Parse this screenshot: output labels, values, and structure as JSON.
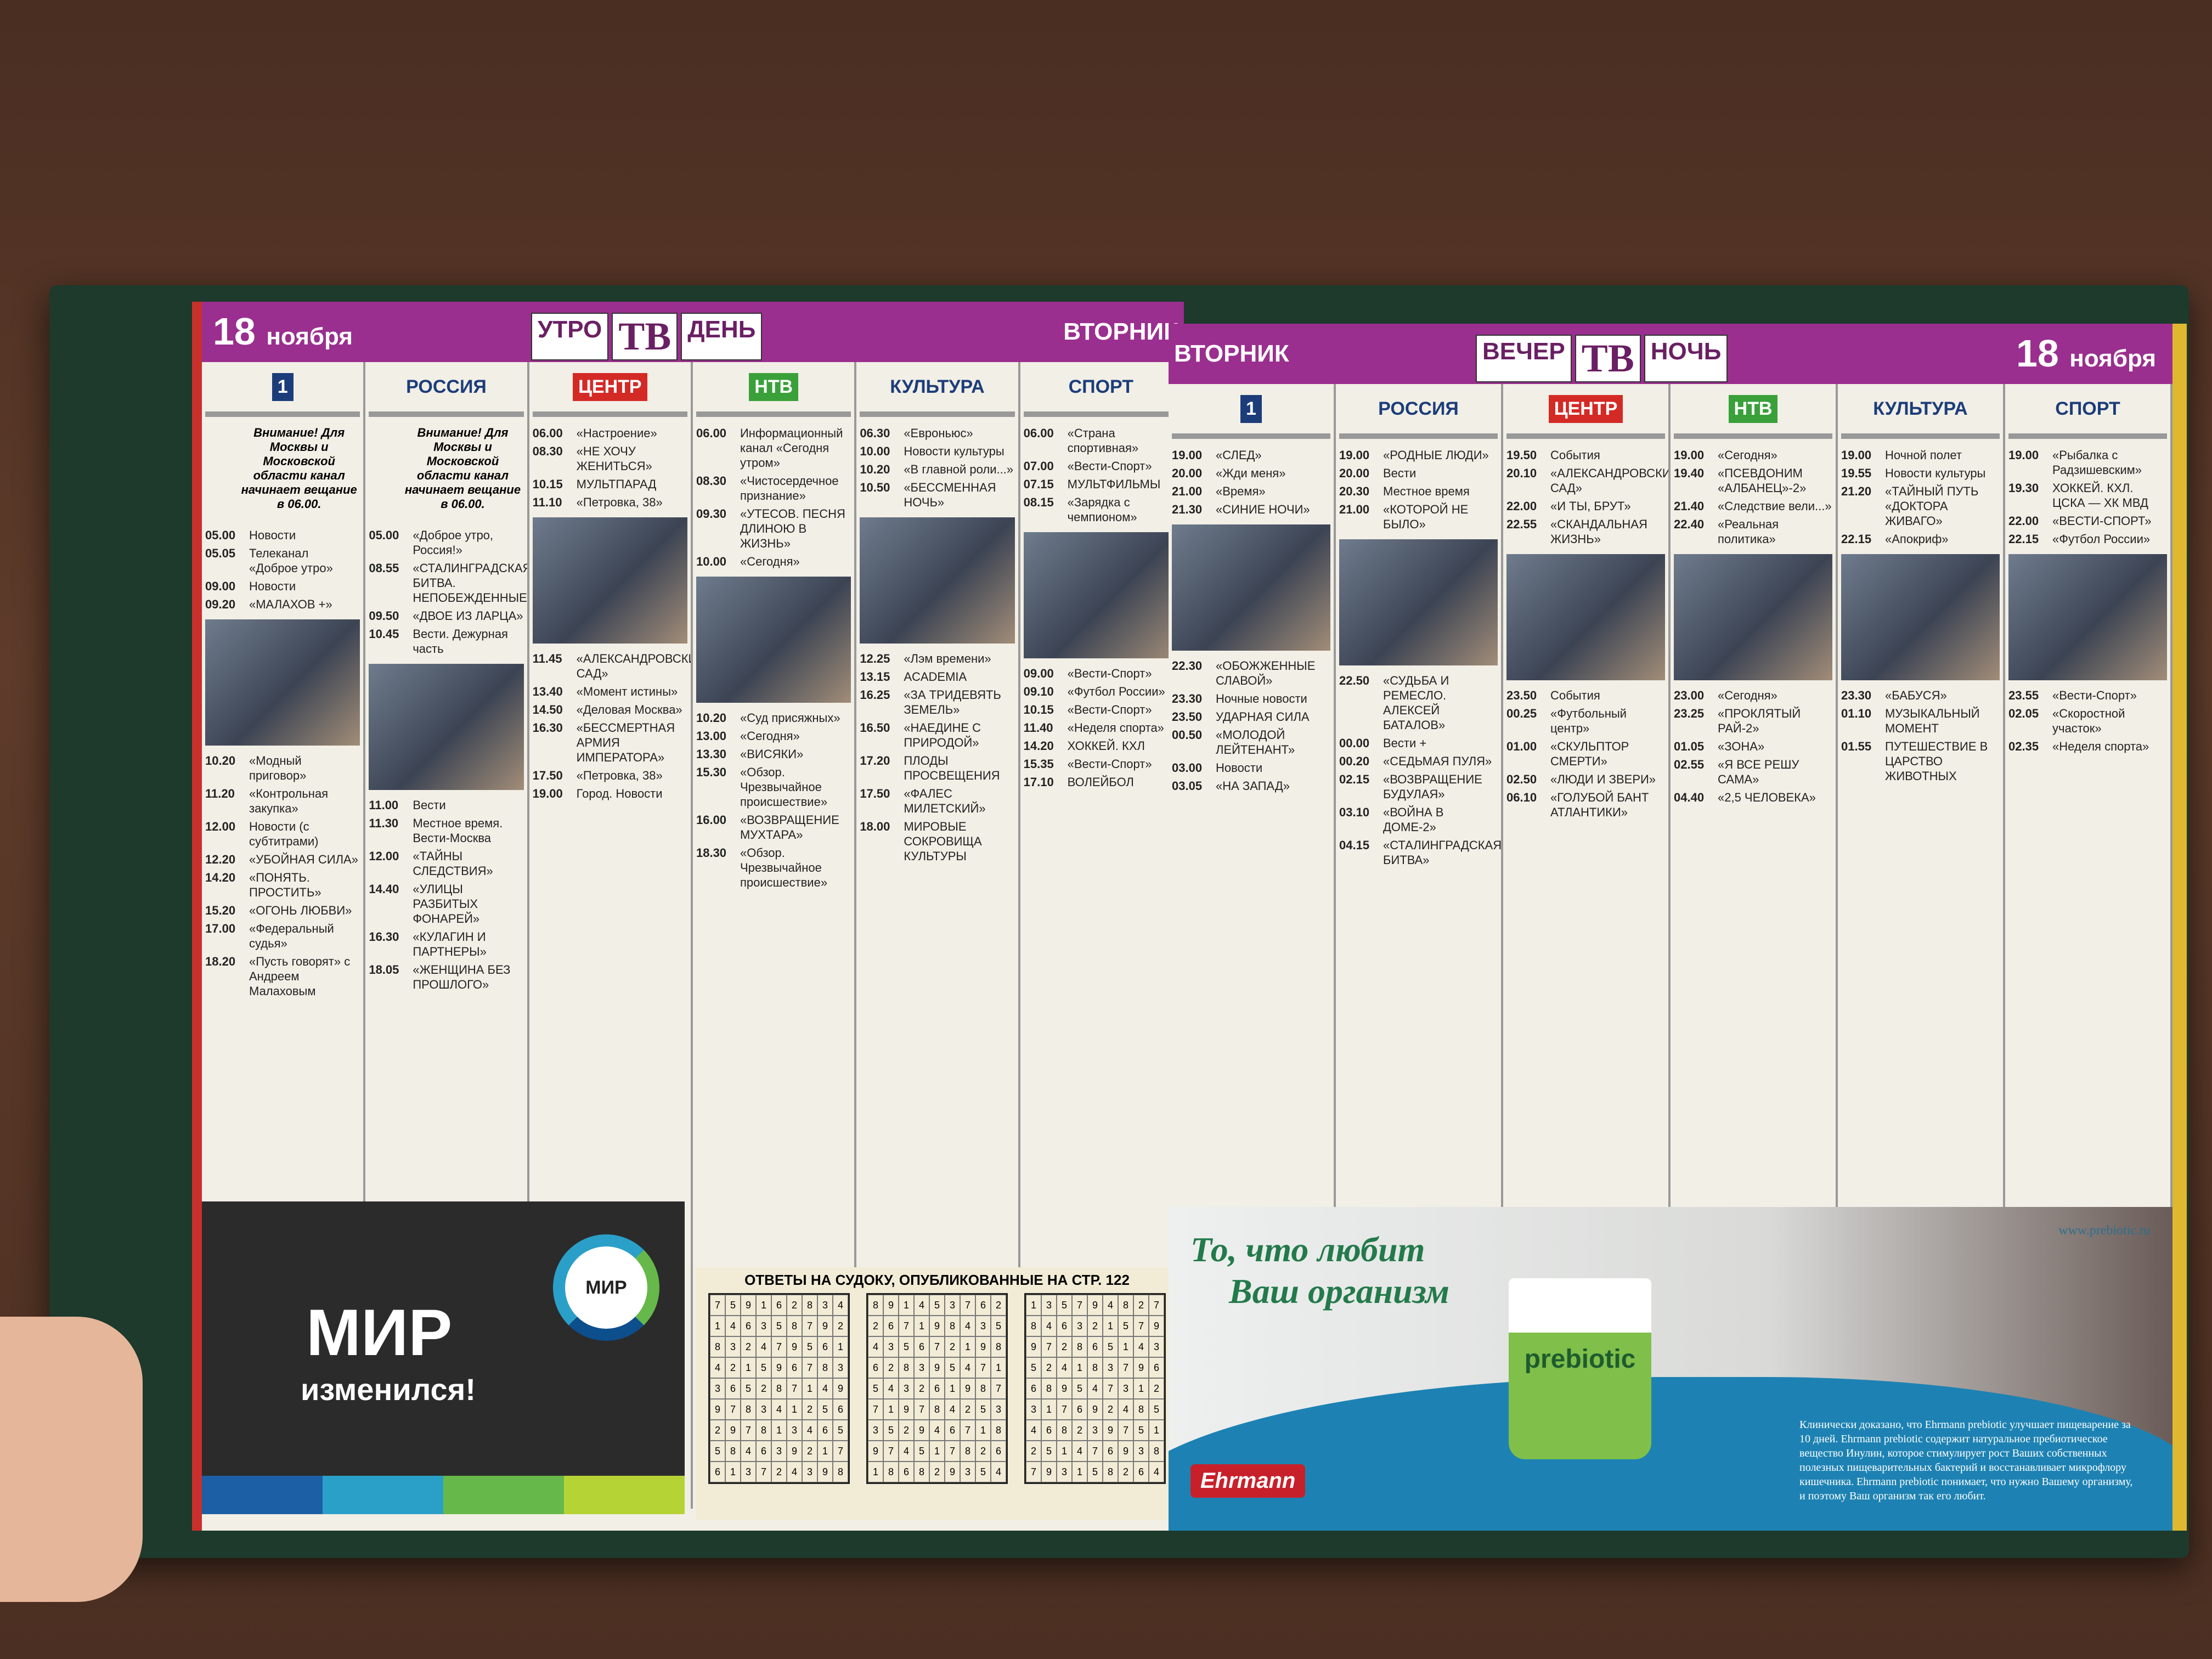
{
  "left_page": {
    "date_num": "18",
    "date_month": "ноября",
    "title": [
      "УТРО",
      "ТВ",
      "ДЕНЬ"
    ],
    "day": "ВТОРНИК",
    "channels": [
      {
        "logo": "1",
        "color": "#1c3d7a",
        "notice": "Внимание! Для Москвы и Московской области канал начинает вещание в 06.00.",
        "items": [
          [
            "05.00",
            "Новости"
          ],
          [
            "05.05",
            "Телеканал «Доброе утро»"
          ],
          [
            "09.00",
            "Новости"
          ],
          [
            "09.20",
            "«МАЛАХОВ +»"
          ],
          [
            "10.20",
            "«Модный приговор»"
          ],
          [
            "11.20",
            "«Контрольная закупка»"
          ],
          [
            "12.00",
            "Новости (с субтитрами)"
          ],
          [
            "12.20",
            "«УБОЙНАЯ СИЛА»"
          ],
          [
            "14.20",
            "«ПОНЯТЬ. ПРОСТИТЬ»"
          ],
          [
            "15.20",
            "«ОГОНЬ ЛЮБВИ»"
          ],
          [
            "17.00",
            "«Федеральный судья»"
          ],
          [
            "18.20",
            "«Пусть говорят» с Андреем Малаховым"
          ]
        ]
      },
      {
        "logo": "РОССИЯ",
        "color": "#1c3d7a",
        "notice": "Внимание! Для Москвы и Московской области канал начинает вещание в 06.00.",
        "items": [
          [
            "05.00",
            "«Доброе утро, Россия!»"
          ],
          [
            "08.55",
            "«СТАЛИНГРАДСКАЯ БИТВА. НЕПОБЕЖДЕННЫЕ»"
          ],
          [
            "09.50",
            "«ДВОЕ ИЗ ЛАРЦА»"
          ],
          [
            "10.45",
            "Вести. Дежурная часть"
          ],
          [
            "11.00",
            "Вести"
          ],
          [
            "11.30",
            "Местное время. Вести-Москва"
          ],
          [
            "12.00",
            "«ТАЙНЫ СЛЕДСТВИЯ»"
          ],
          [
            "14.40",
            "«УЛИЦЫ РАЗБИТЫХ ФОНАРЕЙ»"
          ],
          [
            "16.30",
            "«КУЛАГИН И ПАРТНЕРЫ»"
          ],
          [
            "18.05",
            "«ЖЕНЩИНА БЕЗ ПРОШЛОГО»"
          ]
        ]
      },
      {
        "logo": "ЦЕНТР",
        "color": "#d42a26",
        "notice": "",
        "items": [
          [
            "06.00",
            "«Настроение»"
          ],
          [
            "08.30",
            "«НЕ ХОЧУ ЖЕНИТЬСЯ»"
          ],
          [
            "10.15",
            "МУЛЬТПАРАД"
          ],
          [
            "11.10",
            "«Петровка, 38»"
          ],
          [
            "11.45",
            "«АЛЕКСАНДРОВСКИЙ САД»"
          ],
          [
            "13.40",
            "«Момент истины»"
          ],
          [
            "14.50",
            "«Деловая Москва»"
          ],
          [
            "16.30",
            "«БЕССМЕРТНАЯ АРМИЯ ИМПЕРАТОРА»"
          ],
          [
            "17.50",
            "«Петровка, 38»"
          ],
          [
            "19.00",
            "Город. Новости"
          ]
        ]
      },
      {
        "logo": "НТВ",
        "color": "#3aa03a",
        "notice": "",
        "items": [
          [
            "06.00",
            "Информационный канал «Сегодня утром»"
          ],
          [
            "08.30",
            "«Чистосердечное признание»"
          ],
          [
            "09.30",
            "«УТЕСОВ. ПЕСНЯ ДЛИНОЮ В ЖИЗНЬ»"
          ],
          [
            "10.00",
            "«Сегодня»"
          ],
          [
            "10.20",
            "«Суд присяжных»"
          ],
          [
            "13.00",
            "«Сегодня»"
          ],
          [
            "13.30",
            "«ВИСЯКИ»"
          ],
          [
            "15.30",
            "«Обзор. Чрезвычайное происшествие»"
          ],
          [
            "16.00",
            "«ВОЗВРАЩЕНИЕ МУХТАРА»"
          ],
          [
            "18.30",
            "«Обзор. Чрезвычайное происшествие»"
          ]
        ]
      },
      {
        "logo": "КУЛЬТУРА",
        "color": "#1c3d7a",
        "notice": "",
        "items": [
          [
            "06.30",
            "«Евроньюс»"
          ],
          [
            "10.00",
            "Новости культуры"
          ],
          [
            "10.20",
            "«В главной роли...»"
          ],
          [
            "10.50",
            "«БЕССМЕННАЯ НОЧЬ»"
          ],
          [
            "12.25",
            "«Лэм времени»"
          ],
          [
            "13.15",
            "ACADEMIA"
          ],
          [
            "16.25",
            "«ЗА ТРИДЕВЯТЬ ЗЕМЕЛЬ»"
          ],
          [
            "16.50",
            "«НАЕДИНЕ С ПРИРОДОЙ»"
          ],
          [
            "17.20",
            "ПЛОДЫ ПРОСВЕЩЕНИЯ"
          ],
          [
            "17.50",
            "«ФАЛЕС МИЛЕТСКИЙ»"
          ],
          [
            "18.00",
            "МИРОВЫЕ СОКРОВИЩА КУЛЬТУРЫ"
          ]
        ]
      },
      {
        "logo": "СПОРТ",
        "color": "#1c3d7a",
        "notice": "",
        "items": [
          [
            "06.00",
            "«Страна спортивная»"
          ],
          [
            "07.00",
            "«Вести-Спорт»"
          ],
          [
            "07.15",
            "МУЛЬТФИЛЬМЫ"
          ],
          [
            "08.15",
            "«Зарядка с чемпионом»"
          ],
          [
            "09.00",
            "«Вести-Спорт»"
          ],
          [
            "09.10",
            "«Футбол России»"
          ],
          [
            "10.15",
            "«Вести-Спорт»"
          ],
          [
            "11.40",
            "«Неделя спорта»"
          ],
          [
            "14.20",
            "ХОККЕЙ. КХЛ"
          ],
          [
            "15.35",
            "«Вести-Спорт»"
          ],
          [
            "17.10",
            "ВОЛЕЙБОЛ"
          ]
        ]
      }
    ]
  },
  "right_page": {
    "date_num": "18",
    "date_month": "ноября",
    "title": [
      "ВЕЧЕР",
      "ТВ",
      "НОЧЬ"
    ],
    "day": "ВТОРНИК",
    "channels": [
      {
        "logo": "1",
        "color": "#1c3d7a",
        "items": [
          [
            "19.00",
            "«СЛЕД»"
          ],
          [
            "20.00",
            "«Жди меня»"
          ],
          [
            "21.00",
            "«Время»"
          ],
          [
            "21.30",
            "«СИНИЕ НОЧИ»"
          ],
          [
            "22.30",
            "«ОБОЖЖЕННЫЕ СЛАВОЙ»"
          ],
          [
            "23.30",
            "Ночные новости"
          ],
          [
            "23.50",
            "УДАРНАЯ СИЛА"
          ],
          [
            "00.50",
            "«МОЛОДОЙ ЛЕЙТЕНАНТ»"
          ],
          [
            "03.00",
            "Новости"
          ],
          [
            "03.05",
            "«НА ЗАПАД»"
          ]
        ]
      },
      {
        "logo": "РОССИЯ",
        "color": "#1c3d7a",
        "items": [
          [
            "19.00",
            "«РОДНЫЕ ЛЮДИ»"
          ],
          [
            "20.00",
            "Вести"
          ],
          [
            "20.30",
            "Местное время"
          ],
          [
            "21.00",
            "«КОТОРОЙ НЕ БЫЛО»"
          ],
          [
            "22.50",
            "«СУДЬБА И РЕМЕСЛО. АЛЕКСЕЙ БАТАЛОВ»"
          ],
          [
            "00.00",
            "Вести +"
          ],
          [
            "00.20",
            "«СЕДЬМАЯ ПУЛЯ»"
          ],
          [
            "02.15",
            "«ВОЗВРАЩЕНИЕ БУДУЛАЯ»"
          ],
          [
            "03.10",
            "«ВОЙНА В ДОМЕ-2»"
          ],
          [
            "04.15",
            "«СТАЛИНГРАДСКАЯ БИТВА»"
          ]
        ]
      },
      {
        "logo": "ЦЕНТР",
        "color": "#d42a26",
        "items": [
          [
            "19.50",
            "События"
          ],
          [
            "20.10",
            "«АЛЕКСАНДРОВСКИЙ САД»"
          ],
          [
            "22.00",
            "«И ТЫ, БРУТ»"
          ],
          [
            "22.55",
            "«СКАНДАЛЬНАЯ ЖИЗНЬ»"
          ],
          [
            "23.50",
            "События"
          ],
          [
            "00.25",
            "«Футбольный центр»"
          ],
          [
            "01.00",
            "«СКУЛЬПТОР СМЕРТИ»"
          ],
          [
            "02.50",
            "«ЛЮДИ И ЗВЕРИ»"
          ],
          [
            "06.10",
            "«ГОЛУБОЙ БАНТ АТЛАНТИКИ»"
          ]
        ]
      },
      {
        "logo": "НТВ",
        "color": "#3aa03a",
        "items": [
          [
            "19.00",
            "«Сегодня»"
          ],
          [
            "19.40",
            "«ПСЕВДОНИМ «АЛБАНЕЦ»-2»"
          ],
          [
            "21.40",
            "«Следствие вели...»"
          ],
          [
            "22.40",
            "«Реальная политика»"
          ],
          [
            "23.00",
            "«Сегодня»"
          ],
          [
            "23.25",
            "«ПРОКЛЯТЫЙ РАЙ-2»"
          ],
          [
            "01.05",
            "«ЗОНА»"
          ],
          [
            "02.55",
            "«Я ВСЕ РЕШУ САМА»"
          ],
          [
            "04.40",
            "«2,5 ЧЕЛОВЕКА»"
          ]
        ]
      },
      {
        "logo": "КУЛЬТУРА",
        "color": "#1c3d7a",
        "items": [
          [
            "19.00",
            "Ночной полет"
          ],
          [
            "19.55",
            "Новости культуры"
          ],
          [
            "21.20",
            "«ТАЙНЫЙ ПУТЬ «ДОКТОРА ЖИВАГО»"
          ],
          [
            "22.15",
            "«Апокриф»"
          ],
          [
            "23.30",
            "«БАБУСЯ»"
          ],
          [
            "01.10",
            "МУЗЫКАЛЬНЫЙ МОМЕНТ"
          ],
          [
            "01.55",
            "ПУТЕШЕСТВИЕ В ЦАРСТВО ЖИВОТНЫХ"
          ]
        ]
      },
      {
        "logo": "СПОРТ",
        "color": "#1c3d7a",
        "items": [
          [
            "19.00",
            "«Рыбалка с Радзишевским»"
          ],
          [
            "19.30",
            "ХОККЕЙ. КХЛ. ЦСКА — ХК МВД"
          ],
          [
            "22.00",
            "«ВЕСТИ-СПОРТ»"
          ],
          [
            "22.15",
            "«Футбол России»"
          ],
          [
            "23.55",
            "«Вести-Спорт»"
          ],
          [
            "02.05",
            "«Скоростной участок»"
          ],
          [
            "02.35",
            "«Неделя спорта»"
          ]
        ]
      }
    ]
  },
  "mir_ad": {
    "logo": "МИР",
    "headline": "МИР",
    "subline": "изменился!"
  },
  "sudoku": {
    "heading": "ОТВЕТЫ НА СУДОКУ, ОПУБЛИКОВАННЫЕ НА СТР. 122",
    "grids": [
      [
        "759162834",
        "146358792",
        "832479561",
        "421596783",
        "365287149",
        "978341256",
        "297813465",
        "584639217",
        "613724398"
      ],
      [
        "891453762",
        "267198435",
        "435672198",
        "628395471",
        "543261987",
        "719784253",
        "352946718",
        "974517826",
        "186829354"
      ],
      [
        "135794827",
        "846321579",
        "972865143",
        "524183796",
        "689547312",
        "317692485",
        "468239751",
        "251476938",
        "793158264"
      ]
    ]
  },
  "prebiotic_ad": {
    "slogan_1": "То, что любит",
    "slogan_2": "Ваш организм",
    "url": "www.prebiotic.ru",
    "product": "prebiotic",
    "brand": "Ehrmann",
    "body": "Клинически доказано, что Ehrmann prebiotic улучшает пищеварение за 10 дней. Ehrmann prebiotic содержит натуральное пребиотическое вещество Инулин, которое стимулирует рост Ваших собственных полезных пищеварительных бактерий и восстанавливает микрофлору кишечника. Ehrmann prebiotic понимает, что нужно Вашему организму, и поэтому Ваш организм так его любит."
  }
}
